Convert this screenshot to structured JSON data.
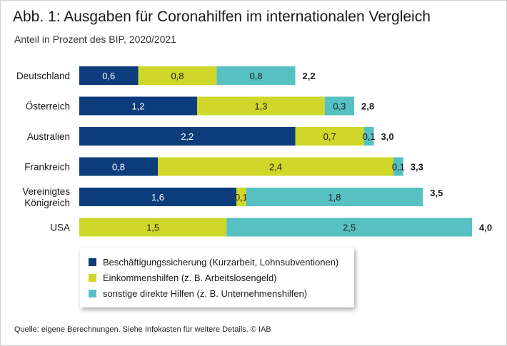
{
  "title": "Abb. 1: Ausgaben für Coronahilfen im internationalen Vergleich",
  "subtitle": "Anteil in Prozent des BIP, 2020/2021",
  "source": "Quelle: eigene Berechnungen. Siehe Infokasten für weitere Details.  © IAB",
  "colors": {
    "dark_blue": "#0c3c7c",
    "yellow_green": "#cfd82a",
    "turquoise": "#57c0c2"
  },
  "chart_data": {
    "type": "bar",
    "orientation": "horizontal",
    "stacked": true,
    "title": "Abb. 1: Ausgaben für Coronahilfen im internationalen Vergleich",
    "subtitle": "Anteil in Prozent des BIP, 2020/2021",
    "xlim": [
      0,
      4.0
    ],
    "categories": [
      "Deutschland",
      "Österreich",
      "Australien",
      "Frankreich",
      "Vereinigtes Königreich",
      "USA"
    ],
    "series": [
      {
        "name": "Beschäftigungssicherung (Kurzarbeit, Lohnsubventionen)",
        "color": "#0c3c7c",
        "values": [
          0.6,
          1.2,
          2.2,
          0.8,
          1.6,
          0.0
        ],
        "labels": [
          "0,6",
          "1,2",
          "2,2",
          "0,8",
          "1,6",
          ""
        ]
      },
      {
        "name": "Einkommenshilfen (z. B. Arbeitslosengeld)",
        "color": "#cfd82a",
        "values": [
          0.8,
          1.3,
          0.7,
          2.4,
          0.1,
          1.5
        ],
        "labels": [
          "0,8",
          "1,3",
          "0,7",
          "2,4",
          "0,1",
          "1,5"
        ]
      },
      {
        "name": "sonstige direkte Hilfen (z. B. Unternehmenshilfen)",
        "color": "#57c0c2",
        "values": [
          0.8,
          0.3,
          0.1,
          0.1,
          1.8,
          2.5
        ],
        "labels": [
          "0,8",
          "0,3",
          "0,1",
          "0,1",
          "1,8",
          "2,5"
        ]
      }
    ],
    "totals": [
      "2,2",
      "2,8",
      "3,0",
      "3,3",
      "3,5",
      "4,0"
    ],
    "legend": [
      "Beschäftigungssicherung (Kurzarbeit, Lohnsubventionen)",
      "Einkommenshilfen (z. B. Arbeitslosengeld)",
      "sonstige direkte Hilfen (z. B. Unternehmenshilfen)"
    ],
    "legend_position": "bottom-left"
  }
}
